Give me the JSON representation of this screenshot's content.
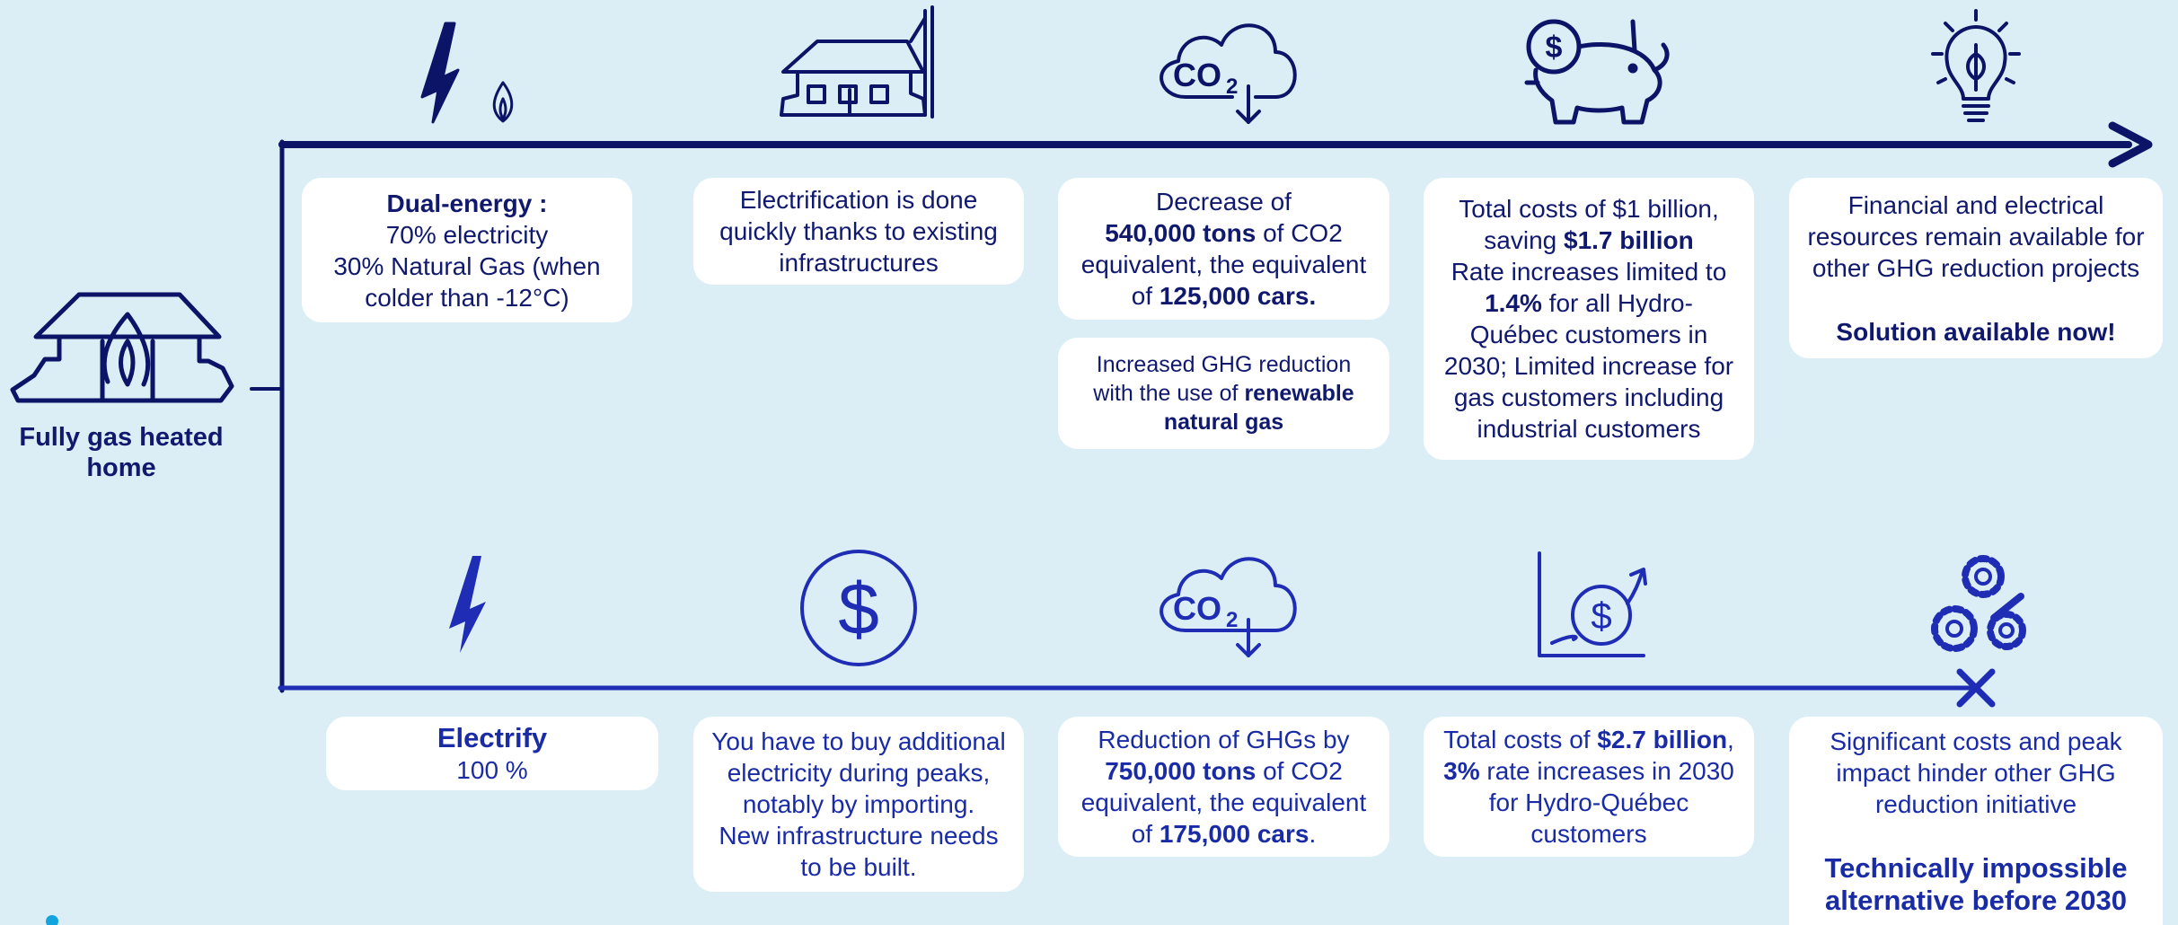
{
  "home_label": [
    "Fully gas heated",
    "home"
  ],
  "icon_text": {
    "co": "CO",
    "sub": "2",
    "dollar": "$"
  },
  "top_row": [
    {
      "paragraphs": [
        [
          [
            {
              "text": "Dual-energy :",
              "bold": true
            }
          ],
          [
            {
              "text": "70% electricity"
            }
          ],
          [
            {
              "text": "30% Natural Gas (when"
            }
          ],
          [
            {
              "text": "colder than -12°C)"
            }
          ]
        ]
      ]
    },
    {
      "paragraphs": [
        [
          [
            {
              "text": "Electrification is done"
            }
          ],
          [
            {
              "text": "quickly thanks to existing"
            }
          ],
          [
            {
              "text": "infrastructures"
            }
          ]
        ]
      ]
    },
    {
      "paragraphs": [
        [
          [
            {
              "text": "Decrease of"
            }
          ],
          [
            {
              "text": "540,000 tons",
              "bold": true
            },
            {
              "text": " of CO2"
            }
          ],
          [
            {
              "text": "equivalent, the equivalent"
            }
          ],
          [
            {
              "text": "of "
            },
            {
              "text": "125,000 cars.",
              "bold": true
            }
          ]
        ]
      ]
    },
    {
      "paragraphs": [
        [
          [
            {
              "text": "Increased GHG reduction"
            }
          ],
          [
            {
              "text": "with the use of "
            },
            {
              "text": "renewable",
              "bold": true
            }
          ],
          [
            {
              "text": "natural gas",
              "bold": true
            }
          ]
        ]
      ]
    },
    {
      "paragraphs": [
        [
          [
            {
              "text": "Total costs of $1 billion,"
            }
          ],
          [
            {
              "text": "saving "
            },
            {
              "text": "$1.7 billion",
              "bold": true
            }
          ],
          [
            {
              "text": "Rate increases limited to"
            }
          ],
          [
            {
              "text": "1.4%",
              "bold": true
            },
            {
              "text": " for all Hydro-"
            }
          ],
          [
            {
              "text": "Québec customers in"
            }
          ],
          [
            {
              "text": "2030; Limited increase for"
            }
          ],
          [
            {
              "text": "gas customers including"
            }
          ],
          [
            {
              "text": "industrial customers"
            }
          ]
        ]
      ]
    },
    {
      "paragraphs": [
        [
          [
            {
              "text": "Financial and electrical"
            }
          ],
          [
            {
              "text": "resources remain available for"
            }
          ],
          [
            {
              "text": "other GHG reduction projects"
            }
          ]
        ],
        [
          [
            {
              "text": "Solution available now!",
              "bold": true
            }
          ]
        ]
      ]
    }
  ],
  "bottom_row": [
    {
      "paragraphs": [
        [
          [
            {
              "text": "Electrify",
              "bold": true
            }
          ],
          [
            {
              "text": "100 %"
            }
          ]
        ]
      ]
    },
    {
      "paragraphs": [
        [
          [
            {
              "text": "You have to buy additional"
            }
          ],
          [
            {
              "text": "electricity during peaks,"
            }
          ],
          [
            {
              "text": "notably by importing."
            }
          ],
          [
            {
              "text": "New infrastructure needs"
            }
          ],
          [
            {
              "text": "to be built."
            }
          ]
        ]
      ]
    },
    {
      "paragraphs": [
        [
          [
            {
              "text": "Reduction of GHGs by"
            }
          ],
          [
            {
              "text": "750,000 tons",
              "bold": true
            },
            {
              "text": " of CO2"
            }
          ],
          [
            {
              "text": "equivalent, the equivalent"
            }
          ],
          [
            {
              "text": "of "
            },
            {
              "text": "175,000 cars",
              "bold": true
            },
            {
              "text": "."
            }
          ]
        ]
      ]
    },
    {
      "paragraphs": [
        [
          [
            {
              "text": "Total costs of "
            },
            {
              "text": "$2.7 billion",
              "bold": true
            },
            {
              "text": ","
            }
          ],
          [
            {
              "text": "3%",
              "bold": true
            },
            {
              "text": " rate increases in 2030"
            }
          ],
          [
            {
              "text": "for Hydro-Québec"
            }
          ],
          [
            {
              "text": "customers"
            }
          ]
        ]
      ]
    },
    {
      "paragraphs": [
        [
          [
            {
              "text": "Significant costs and peak"
            }
          ],
          [
            {
              "text": "impact hinder other GHG"
            }
          ],
          [
            {
              "text": "reduction initiative"
            }
          ]
        ],
        [
          [
            {
              "text": "Technically impossible",
              "bold": true
            }
          ],
          [
            {
              "text": "alternative before 2030",
              "bold": true
            }
          ]
        ]
      ]
    }
  ]
}
